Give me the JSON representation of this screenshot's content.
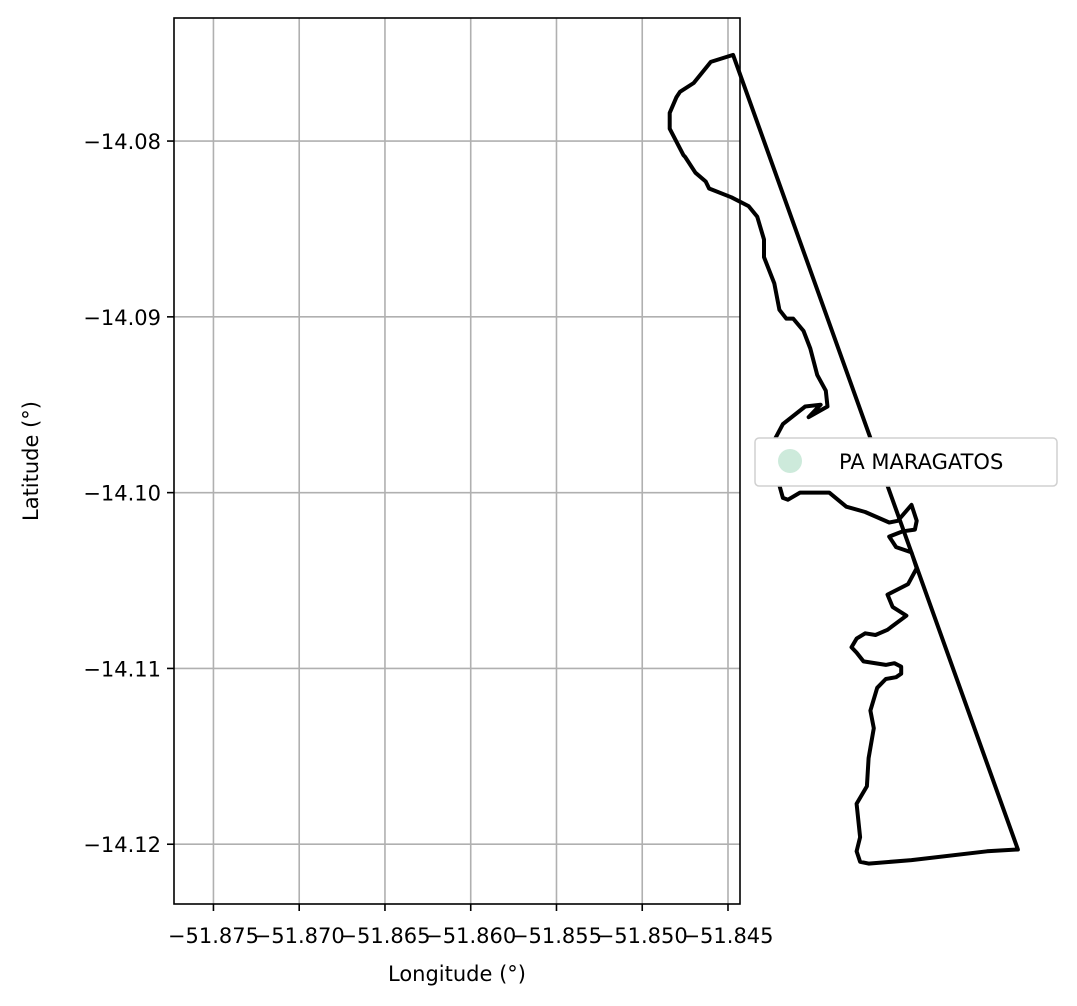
{
  "chart_data": {
    "type": "map",
    "xlabel": "Longitude (°)",
    "ylabel": "Latitude (°)",
    "xlim": [
      -51.8773,
      -51.8443
    ],
    "ylim": [
      -14.1234,
      -14.073
    ],
    "grid": true,
    "x_ticks": [
      {
        "value": -51.875,
        "label": "−51.875"
      },
      {
        "value": -51.87,
        "label": "−51.870"
      },
      {
        "value": -51.865,
        "label": "−51.865"
      },
      {
        "value": -51.86,
        "label": "−51.860"
      },
      {
        "value": -51.855,
        "label": "−51.855"
      },
      {
        "value": -51.85,
        "label": "−51.850"
      },
      {
        "value": -51.845,
        "label": "−51.845"
      }
    ],
    "y_ticks": [
      {
        "value": -14.08,
        "label": "−14.08"
      },
      {
        "value": -14.09,
        "label": "−14.09"
      },
      {
        "value": -14.1,
        "label": "−14.10"
      },
      {
        "value": -14.11,
        "label": "−14.11"
      },
      {
        "value": -14.12,
        "label": "−14.12"
      }
    ],
    "legend": {
      "placement": "center-right-outside",
      "entries": [
        {
          "label": "PA MARAGATOS",
          "color": "#cdeadb",
          "marker": "circle"
        }
      ]
    },
    "series": [
      {
        "name": "PA MARAGATOS",
        "edge_color": "#000000",
        "fill": "none",
        "points": [
          [
            -51.8447,
            -14.0751
          ],
          [
            -51.846,
            -14.0755
          ],
          [
            -51.847,
            -14.0767
          ],
          [
            -51.8478,
            -14.0772
          ],
          [
            -51.848,
            -14.0775
          ],
          [
            -51.8484,
            -14.0784
          ],
          [
            -51.8484,
            -14.0793
          ],
          [
            -51.8476,
            -14.0808
          ],
          [
            -51.8475,
            -14.0809
          ],
          [
            -51.8469,
            -14.0818
          ],
          [
            -51.8463,
            -14.0823
          ],
          [
            -51.8461,
            -14.0827
          ],
          [
            -51.8448,
            -14.0832
          ],
          [
            -51.8438,
            -14.0837
          ],
          [
            -51.8433,
            -14.0843
          ],
          [
            -51.8429,
            -14.0856
          ],
          [
            -51.8429,
            -14.0866
          ],
          [
            -51.8423,
            -14.0881
          ],
          [
            -51.842,
            -14.0896
          ],
          [
            -51.8416,
            -14.0901
          ],
          [
            -51.8412,
            -14.0901
          ],
          [
            -51.8406,
            -14.0908
          ],
          [
            -51.8402,
            -14.0918
          ],
          [
            -51.8398,
            -14.0933
          ],
          [
            -51.8393,
            -14.0942
          ],
          [
            -51.8392,
            -14.0951
          ],
          [
            -51.8403,
            -14.0957
          ],
          [
            -51.8396,
            -14.095
          ],
          [
            -51.8405,
            -14.0951
          ],
          [
            -51.8418,
            -14.0961
          ],
          [
            -51.8424,
            -14.0972
          ],
          [
            -51.8424,
            -14.0982
          ],
          [
            -51.8418,
            -14.1003
          ],
          [
            -51.8415,
            -14.1004
          ],
          [
            -51.8408,
            -14.1
          ],
          [
            -51.8396,
            -14.1
          ],
          [
            -51.8391,
            -14.1
          ],
          [
            -51.8381,
            -14.1008
          ],
          [
            -51.837,
            -14.1011
          ],
          [
            -51.8356,
            -14.1017
          ],
          [
            -51.8351,
            -14.1016
          ],
          [
            -51.8343,
            -14.1007
          ],
          [
            -51.834,
            -14.1016
          ],
          [
            -51.8341,
            -14.1021
          ],
          [
            -51.8348,
            -14.1022
          ],
          [
            -51.8356,
            -14.1025
          ],
          [
            -51.8352,
            -14.1031
          ],
          [
            -51.8343,
            -14.1034
          ],
          [
            -51.834,
            -14.1043
          ],
          [
            -51.8345,
            -14.1052
          ],
          [
            -51.8357,
            -14.1058
          ],
          [
            -51.8354,
            -14.1065
          ],
          [
            -51.8346,
            -14.107
          ],
          [
            -51.8357,
            -14.1078
          ],
          [
            -51.8364,
            -14.1081
          ],
          [
            -51.837,
            -14.108
          ],
          [
            -51.8375,
            -14.1083
          ],
          [
            -51.8378,
            -14.1088
          ],
          [
            -51.8375,
            -14.1091
          ],
          [
            -51.8371,
            -14.1096
          ],
          [
            -51.8358,
            -14.1098
          ],
          [
            -51.8353,
            -14.1097
          ],
          [
            -51.8349,
            -14.1099
          ],
          [
            -51.8349,
            -14.1103
          ],
          [
            -51.8352,
            -14.1105
          ],
          [
            -51.8358,
            -14.1106
          ],
          [
            -51.8363,
            -14.1111
          ],
          [
            -51.8367,
            -14.1124
          ],
          [
            -51.8365,
            -14.1134
          ],
          [
            -51.8368,
            -14.1151
          ],
          [
            -51.8369,
            -14.1167
          ],
          [
            -51.8375,
            -14.1177
          ],
          [
            -51.8373,
            -14.1196
          ],
          [
            -51.8375,
            -14.1204
          ],
          [
            -51.8373,
            -14.121
          ],
          [
            -51.8368,
            -14.1211
          ],
          [
            -51.8343,
            -14.1209
          ],
          [
            -51.8299,
            -14.1204
          ],
          [
            -51.8281,
            -14.1203
          ],
          [
            -51.8447,
            -14.0751
          ]
        ]
      }
    ]
  }
}
